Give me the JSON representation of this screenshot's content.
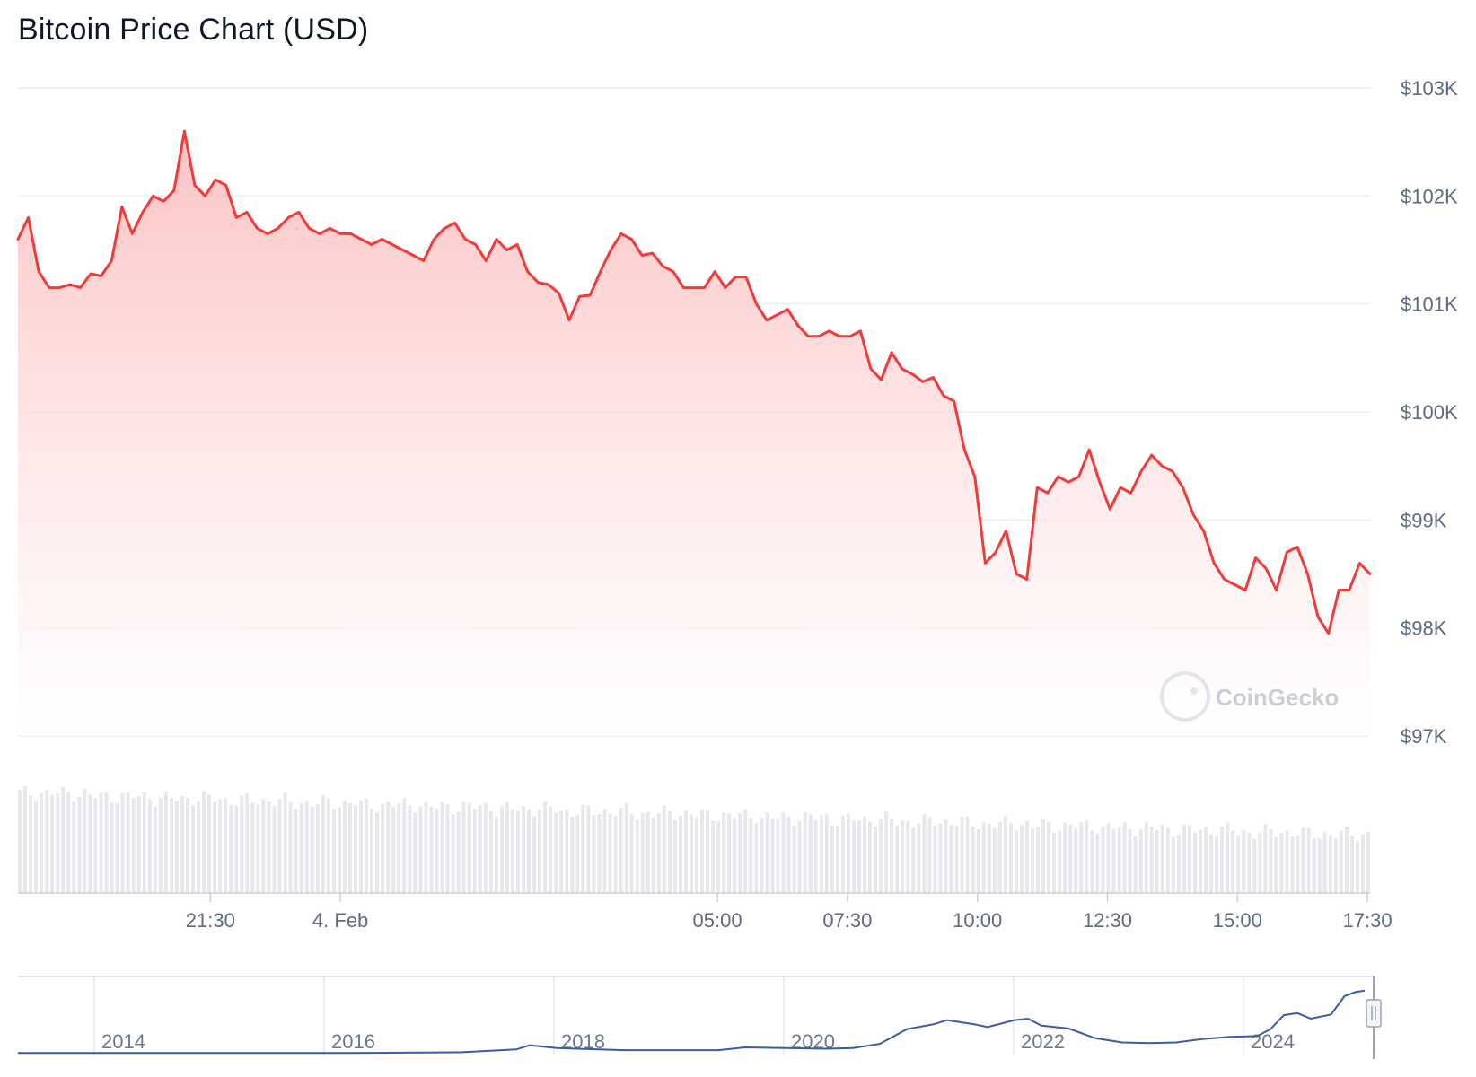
{
  "chart_data": {
    "type": "area",
    "title": "Bitcoin Price Chart (USD)",
    "currency": "USD",
    "watermark": "CoinGecko",
    "line_color": "#f23a3a",
    "fill_color": "#fdd7d7",
    "volume_color": "#e6e8ec",
    "navigator_color": "#3b5ba5",
    "y_ticks": [
      {
        "value": 97000,
        "label": "$97K"
      },
      {
        "value": 98000,
        "label": "$98K"
      },
      {
        "value": 99000,
        "label": "$99K"
      },
      {
        "value": 100000,
        "label": "$100K"
      },
      {
        "value": 101000,
        "label": "$101K"
      },
      {
        "value": 102000,
        "label": "$102K"
      },
      {
        "value": 103000,
        "label": "$103K"
      }
    ],
    "ylim": [
      97000,
      103000
    ],
    "x_ticks": [
      {
        "hours": 2.5,
        "label": "21:30"
      },
      {
        "hours": 5.0,
        "label": "4. Feb"
      },
      {
        "hours": 12.25,
        "label": "05:00"
      },
      {
        "hours": 14.75,
        "label": "07:30"
      },
      {
        "hours": 17.25,
        "label": "10:00"
      },
      {
        "hours": 19.75,
        "label": "12:30"
      },
      {
        "hours": 22.25,
        "label": "15:00"
      },
      {
        "hours": 24.75,
        "label": "17:30"
      }
    ],
    "xlim_hours": [
      -1.2,
      24.8
    ],
    "price_series": [
      [
        -1.2,
        101600
      ],
      [
        -1.0,
        101800
      ],
      [
        -0.8,
        101300
      ],
      [
        -0.6,
        101150
      ],
      [
        -0.4,
        101150
      ],
      [
        -0.2,
        101180
      ],
      [
        0.0,
        101150
      ],
      [
        0.2,
        101280
      ],
      [
        0.4,
        101260
      ],
      [
        0.6,
        101400
      ],
      [
        0.8,
        101900
      ],
      [
        1.0,
        101650
      ],
      [
        1.2,
        101850
      ],
      [
        1.4,
        102000
      ],
      [
        1.6,
        101950
      ],
      [
        1.8,
        102050
      ],
      [
        2.0,
        102600
      ],
      [
        2.2,
        102100
      ],
      [
        2.4,
        102000
      ],
      [
        2.6,
        102150
      ],
      [
        2.8,
        102100
      ],
      [
        3.0,
        101800
      ],
      [
        3.2,
        101850
      ],
      [
        3.4,
        101700
      ],
      [
        3.6,
        101650
      ],
      [
        3.8,
        101700
      ],
      [
        4.0,
        101800
      ],
      [
        4.2,
        101850
      ],
      [
        4.4,
        101700
      ],
      [
        4.6,
        101650
      ],
      [
        4.8,
        101700
      ],
      [
        5.0,
        101650
      ],
      [
        5.2,
        101650
      ],
      [
        5.4,
        101600
      ],
      [
        5.6,
        101550
      ],
      [
        5.8,
        101600
      ],
      [
        6.0,
        101550
      ],
      [
        6.2,
        101500
      ],
      [
        6.4,
        101450
      ],
      [
        6.6,
        101400
      ],
      [
        6.8,
        101600
      ],
      [
        7.0,
        101700
      ],
      [
        7.2,
        101750
      ],
      [
        7.4,
        101600
      ],
      [
        7.6,
        101550
      ],
      [
        7.8,
        101400
      ],
      [
        8.0,
        101600
      ],
      [
        8.2,
        101500
      ],
      [
        8.4,
        101550
      ],
      [
        8.6,
        101300
      ],
      [
        8.8,
        101200
      ],
      [
        9.0,
        101180
      ],
      [
        9.2,
        101100
      ],
      [
        9.4,
        100850
      ],
      [
        9.6,
        101070
      ],
      [
        9.8,
        101080
      ],
      [
        10.0,
        101300
      ],
      [
        10.2,
        101500
      ],
      [
        10.4,
        101650
      ],
      [
        10.6,
        101600
      ],
      [
        10.8,
        101450
      ],
      [
        11.0,
        101470
      ],
      [
        11.2,
        101350
      ],
      [
        11.4,
        101300
      ],
      [
        11.6,
        101150
      ],
      [
        11.8,
        101150
      ],
      [
        12.0,
        101150
      ],
      [
        12.2,
        101300
      ],
      [
        12.4,
        101150
      ],
      [
        12.6,
        101250
      ],
      [
        12.8,
        101250
      ],
      [
        13.0,
        101000
      ],
      [
        13.2,
        100850
      ],
      [
        13.4,
        100900
      ],
      [
        13.6,
        100950
      ],
      [
        13.8,
        100800
      ],
      [
        14.0,
        100700
      ],
      [
        14.2,
        100700
      ],
      [
        14.4,
        100750
      ],
      [
        14.6,
        100700
      ],
      [
        14.8,
        100700
      ],
      [
        15.0,
        100750
      ],
      [
        15.2,
        100400
      ],
      [
        15.4,
        100300
      ],
      [
        15.6,
        100550
      ],
      [
        15.8,
        100400
      ],
      [
        16.0,
        100350
      ],
      [
        16.2,
        100280
      ],
      [
        16.4,
        100320
      ],
      [
        16.6,
        100150
      ],
      [
        16.8,
        100100
      ],
      [
        17.0,
        99650
      ],
      [
        17.2,
        99400
      ],
      [
        17.4,
        98600
      ],
      [
        17.6,
        98700
      ],
      [
        17.8,
        98900
      ],
      [
        18.0,
        98500
      ],
      [
        18.2,
        98450
      ],
      [
        18.4,
        99300
      ],
      [
        18.6,
        99250
      ],
      [
        18.8,
        99400
      ],
      [
        19.0,
        99350
      ],
      [
        19.2,
        99400
      ],
      [
        19.4,
        99650
      ],
      [
        19.6,
        99350
      ],
      [
        19.8,
        99100
      ],
      [
        20.0,
        99300
      ],
      [
        20.2,
        99250
      ],
      [
        20.4,
        99450
      ],
      [
        20.6,
        99600
      ],
      [
        20.8,
        99500
      ],
      [
        21.0,
        99450
      ],
      [
        21.2,
        99300
      ],
      [
        21.4,
        99050
      ],
      [
        21.6,
        98900
      ],
      [
        21.8,
        98600
      ],
      [
        22.0,
        98450
      ],
      [
        22.2,
        98400
      ],
      [
        22.4,
        98350
      ],
      [
        22.6,
        98650
      ],
      [
        22.8,
        98550
      ],
      [
        23.0,
        98350
      ],
      [
        23.2,
        98700
      ],
      [
        23.4,
        98750
      ],
      [
        23.6,
        98500
      ],
      [
        23.8,
        98100
      ],
      [
        24.0,
        97950
      ],
      [
        24.2,
        98350
      ],
      [
        24.4,
        98350
      ],
      [
        24.6,
        98600
      ],
      [
        24.8,
        98500
      ]
    ],
    "volume_relative": [
      0.95,
      0.92,
      0.9,
      0.88,
      0.86,
      0.84,
      0.82,
      0.8,
      0.78,
      0.76,
      0.74,
      0.72,
      0.7,
      0.68,
      0.66,
      0.64,
      0.62,
      0.6,
      0.58,
      0.56
    ],
    "navigator": {
      "years": [
        "2014",
        "2016",
        "2018",
        "2020",
        "2022",
        "2024"
      ]
    }
  }
}
